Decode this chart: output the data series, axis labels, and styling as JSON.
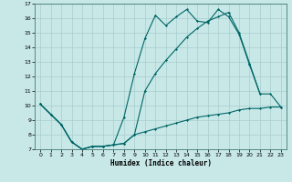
{
  "xlabel": "Humidex (Indice chaleur)",
  "background_color": "#c8e8e8",
  "grid_color": "#a8cccc",
  "line_color": "#006666",
  "xlim": [
    -0.5,
    23.5
  ],
  "ylim": [
    7,
    17
  ],
  "yticks": [
    7,
    8,
    9,
    10,
    11,
    12,
    13,
    14,
    15,
    16,
    17
  ],
  "xticks": [
    0,
    1,
    2,
    3,
    4,
    5,
    6,
    7,
    8,
    9,
    10,
    11,
    12,
    13,
    14,
    15,
    16,
    17,
    18,
    19,
    20,
    21,
    22,
    23
  ],
  "series1_x": [
    0,
    1,
    2,
    3,
    4,
    5,
    6,
    7,
    8,
    9,
    10,
    11,
    12,
    13,
    14,
    15,
    16,
    17,
    18,
    19,
    20,
    21
  ],
  "series1_y": [
    10.1,
    9.4,
    8.7,
    7.5,
    7.0,
    7.2,
    7.2,
    7.3,
    9.2,
    12.2,
    14.6,
    16.2,
    15.5,
    16.1,
    16.6,
    15.8,
    15.7,
    16.6,
    16.1,
    14.9,
    12.8,
    10.8
  ],
  "series2_x": [
    0,
    1,
    2,
    3,
    4,
    5,
    6,
    7,
    8,
    9,
    10,
    11,
    12,
    13,
    14,
    15,
    16,
    17,
    18,
    19,
    20,
    21,
    22,
    23
  ],
  "series2_y": [
    10.1,
    9.4,
    8.7,
    7.5,
    7.0,
    7.2,
    7.2,
    7.3,
    7.4,
    8.0,
    8.2,
    8.4,
    8.6,
    8.8,
    9.0,
    9.2,
    9.3,
    9.4,
    9.5,
    9.7,
    9.8,
    9.8,
    9.9,
    9.9
  ],
  "series3_x": [
    0,
    1,
    2,
    3,
    4,
    5,
    6,
    7,
    8,
    9,
    10,
    11,
    12,
    13,
    14,
    15,
    16,
    17,
    18,
    19,
    20,
    21,
    22,
    23
  ],
  "series3_y": [
    10.1,
    9.4,
    8.7,
    7.5,
    7.0,
    7.2,
    7.2,
    7.3,
    7.4,
    8.0,
    11.0,
    12.2,
    13.1,
    13.9,
    14.7,
    15.3,
    15.8,
    16.1,
    16.4,
    15.0,
    12.9,
    10.8,
    10.8,
    9.9
  ]
}
